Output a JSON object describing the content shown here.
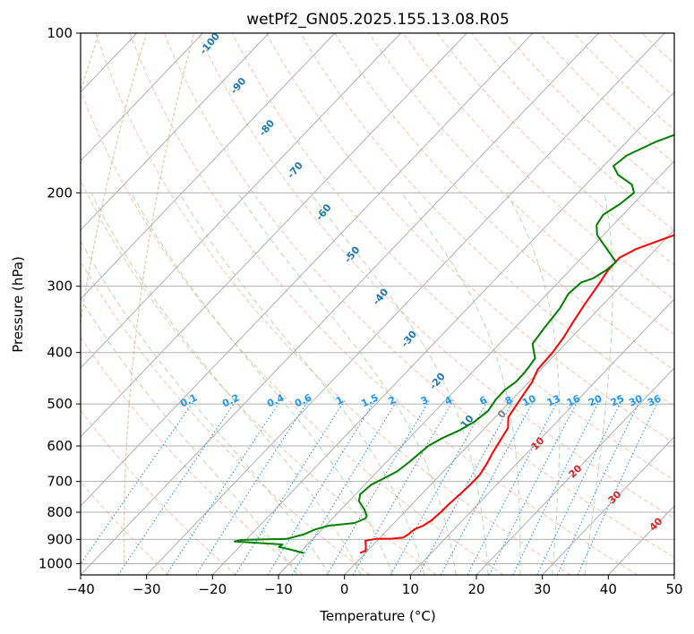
{
  "chart_data": {
    "type": "line",
    "title": "wetPf2_GN05.2025.155.13.08.R05",
    "xlabel": "Temperature (°C)",
    "ylabel": "Pressure (hPa)",
    "xlim": [
      -40,
      50
    ],
    "ylim": [
      1050,
      100
    ],
    "y_scale": "log",
    "grid": true,
    "x_ticks": [
      -40,
      -30,
      -20,
      -10,
      0,
      10,
      20,
      30,
      40,
      50
    ],
    "x_tick_labels": [
      "−40",
      "−30",
      "−20",
      "−10",
      "0",
      "10",
      "20",
      "30",
      "40",
      "50"
    ],
    "y_ticks": [
      1000,
      900,
      800,
      700,
      600,
      500,
      400,
      300,
      200,
      100
    ],
    "y_tick_labels": [
      "1000",
      "900",
      "800",
      "700",
      "600",
      "500",
      "400",
      "300",
      "200",
      "100"
    ],
    "series": [
      {
        "role": "temperature",
        "color": "#ff0000",
        "points": [
          [
            -0.8,
            955
          ],
          [
            -0.3,
            945
          ],
          [
            -1.0,
            925
          ],
          [
            -1.8,
            905
          ],
          [
            -0.5,
            898
          ],
          [
            2.0,
            897
          ],
          [
            3.5,
            893
          ],
          [
            3.8,
            880
          ],
          [
            4.0,
            862
          ],
          [
            4.8,
            848
          ],
          [
            5.3,
            828
          ],
          [
            5.5,
            800
          ],
          [
            5.6,
            770
          ],
          [
            5.8,
            740
          ],
          [
            6.0,
            710
          ],
          [
            6.0,
            680
          ],
          [
            5.5,
            650
          ],
          [
            4.8,
            620
          ],
          [
            4.0,
            580
          ],
          [
            3.5,
            555
          ],
          [
            2.0,
            530
          ],
          [
            1.5,
            505
          ],
          [
            1.0,
            480
          ],
          [
            0.5,
            455
          ],
          [
            -0.5,
            430
          ],
          [
            -0.7,
            400
          ],
          [
            -1.2,
            375
          ],
          [
            -2.0,
            350
          ],
          [
            -2.8,
            325
          ],
          [
            -3.5,
            300
          ],
          [
            -4.2,
            280
          ],
          [
            -4.3,
            265
          ],
          [
            -3.0,
            255
          ],
          [
            -0.5,
            245
          ],
          [
            3.0,
            232
          ],
          [
            10.0,
            212
          ],
          [
            18.0,
            188
          ],
          [
            22.0,
            175
          ],
          [
            24.0,
            165
          ],
          [
            27.0,
            150
          ],
          [
            31.0,
            130
          ],
          [
            35.0,
            116
          ],
          [
            38.0,
            108
          ],
          [
            41.0,
            100
          ]
        ]
      },
      {
        "role": "dewpoint",
        "color": "#008000",
        "points": [
          [
            -9.3,
            955
          ],
          [
            -12.0,
            940
          ],
          [
            -14.0,
            930
          ],
          [
            -13.8,
            920
          ],
          [
            -17.0,
            915
          ],
          [
            -21.5,
            908
          ],
          [
            -20.5,
            902
          ],
          [
            -14.0,
            898
          ],
          [
            -12.0,
            880
          ],
          [
            -11.0,
            862
          ],
          [
            -9.5,
            848
          ],
          [
            -6.0,
            838
          ],
          [
            -5.0,
            822
          ],
          [
            -5.2,
            812
          ],
          [
            -6.5,
            790
          ],
          [
            -8.5,
            762
          ],
          [
            -9.3,
            740
          ],
          [
            -9.0,
            710
          ],
          [
            -8.0,
            690
          ],
          [
            -7.0,
            670
          ],
          [
            -6.5,
            640
          ],
          [
            -6.0,
            600
          ],
          [
            -5.0,
            580
          ],
          [
            -3.5,
            560
          ],
          [
            -2.5,
            540
          ],
          [
            -2.0,
            515
          ],
          [
            -2.5,
            490
          ],
          [
            -2.5,
            470
          ],
          [
            -2.0,
            455
          ],
          [
            -2.0,
            440
          ],
          [
            -2.2,
            425
          ],
          [
            -2.5,
            410
          ],
          [
            -3.5,
            400
          ],
          [
            -5.0,
            385
          ],
          [
            -5.5,
            360
          ],
          [
            -6.0,
            330
          ],
          [
            -6.8,
            310
          ],
          [
            -6.5,
            295
          ],
          [
            -5.3,
            290
          ],
          [
            -4.5,
            280
          ],
          [
            -4.2,
            270
          ],
          [
            -7.5,
            255
          ],
          [
            -11.0,
            240
          ],
          [
            -12.5,
            230
          ],
          [
            -13.0,
            220
          ],
          [
            -12.0,
            210
          ],
          [
            -11.5,
            200
          ],
          [
            -13.0,
            193
          ],
          [
            -16.5,
            185
          ],
          [
            -18.5,
            178
          ],
          [
            -18.0,
            170
          ],
          [
            -15.5,
            160
          ],
          [
            -11.5,
            150
          ],
          [
            -6.5,
            140
          ],
          [
            -2.0,
            132
          ],
          [
            2.5,
            125
          ],
          [
            8.0,
            116
          ],
          [
            14.0,
            108
          ],
          [
            19.0,
            100
          ]
        ]
      }
    ],
    "mixing_ratio_labels": [
      "0.1",
      "0.2",
      "0.4",
      "0.6",
      "1",
      "1.5",
      "2",
      "3",
      "4",
      "6",
      "8",
      "10",
      "13",
      "16",
      "20",
      "25",
      "30",
      "36"
    ],
    "dry_adiabat_labels": [
      "-100",
      "-90",
      "-80",
      "-70",
      "-60",
      "-50",
      "-40",
      "-30",
      "-20",
      "-10"
    ],
    "moist_adiabat_labels": [
      "0",
      "10",
      "20",
      "30",
      "40"
    ],
    "colors": {
      "isotherm": "#b0b0b0",
      "isobar": "#b0b0b0",
      "dry_adiabat": "#ff8a65",
      "moist_adiabat": "#7cc47c",
      "mixing_ratio": "#1e88e5",
      "dry_label": "#1f77b4",
      "mixing_label": "#2196f3",
      "moist_label": "#d62728",
      "zero_label": "#808080",
      "secondary_curve": "#e0c8a8"
    }
  }
}
